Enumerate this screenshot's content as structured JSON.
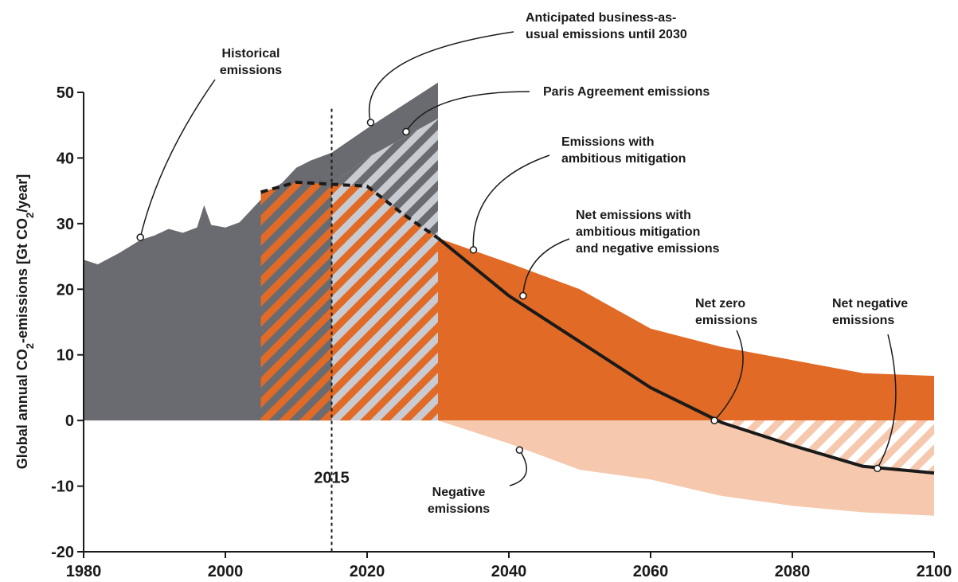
{
  "chart_data": {
    "type": "area",
    "ylabel": "Global annual CO₂-emissions [Gt CO₂/year]",
    "ylabel_parts": [
      "Global annual CO",
      "2",
      "-emissions [Gt CO",
      "2",
      "/year]"
    ],
    "xlim": [
      1980,
      2100
    ],
    "ylim": [
      -20,
      50
    ],
    "x_ticks": [
      1980,
      2000,
      2020,
      2040,
      2060,
      2080,
      2100
    ],
    "y_ticks": [
      -20,
      -10,
      0,
      10,
      20,
      30,
      40,
      50
    ],
    "grid": false,
    "colors": {
      "historical": "#6a6b70",
      "ambitious": "#e06a26",
      "negative": "#f6c8ad",
      "hatch_light": "#c9cbd2",
      "ink": "#1a1a1a"
    },
    "series": [
      {
        "key": "historical",
        "x": [
          1980,
          1982,
          1985,
          1988,
          1990,
          1992,
          1994,
          1996,
          1997,
          1998,
          2000,
          2002,
          2004,
          2006,
          2008,
          2010,
          2012,
          2014,
          2015
        ],
        "values": [
          24.5,
          23.8,
          25.5,
          27.5,
          28.2,
          29.2,
          28.6,
          29.4,
          32.8,
          29.8,
          29.4,
          30.2,
          32.5,
          34.8,
          36.2,
          38.5,
          39.6,
          40.4,
          40.8
        ]
      },
      {
        "key": "business_as_usual",
        "x": [
          2015,
          2020,
          2025,
          2030
        ],
        "values": [
          40.8,
          44.5,
          48,
          51.5
        ]
      },
      {
        "key": "paris_agreement",
        "x": [
          2005,
          2010,
          2015,
          2020,
          2025,
          2030
        ],
        "values": [
          34.8,
          36.5,
          36,
          40,
          43,
          46
        ]
      },
      {
        "key": "ambitious_mitigation",
        "x": [
          2005,
          2010,
          2015,
          2020,
          2025,
          2030,
          2040,
          2050,
          2060,
          2070,
          2080,
          2090,
          2100
        ],
        "values": [
          34.8,
          36.3,
          36,
          35.7,
          31.5,
          27.8,
          24,
          20,
          14,
          11.2,
          9.2,
          7.2,
          6.8
        ]
      },
      {
        "key": "negative_emissions",
        "x": [
          2030,
          2040,
          2050,
          2060,
          2070,
          2080,
          2090,
          2100
        ],
        "values": [
          0,
          -3.5,
          -7.5,
          -9,
          -11.5,
          -13,
          -14,
          -14.5
        ]
      },
      {
        "key": "net_emissions",
        "x": [
          2030,
          2040,
          2050,
          2060,
          2070,
          2080,
          2090,
          2100
        ],
        "values": [
          27.8,
          19,
          12,
          5,
          -0.3,
          -3.8,
          -7,
          -8
        ]
      }
    ],
    "marker_year": 2015,
    "marker_label": "2015",
    "annotations": [
      {
        "key": "historical",
        "lines": [
          "Historical",
          "emissions"
        ],
        "point": [
          1988,
          27.9
        ]
      },
      {
        "key": "bau",
        "lines": [
          "Anticipated business-as-",
          "usual emissions until 2030"
        ],
        "point": [
          2020.5,
          45.4
        ]
      },
      {
        "key": "paris",
        "lines": [
          "Paris Agreement emissions"
        ],
        "point": [
          2025.5,
          44
        ]
      },
      {
        "key": "ambitious",
        "lines": [
          "Emissions with",
          "ambitious mitigation"
        ],
        "point": [
          2035,
          26
        ]
      },
      {
        "key": "net_ambitious",
        "lines": [
          "Net emissions with",
          "ambitious mitigation",
          "and negative emissions"
        ],
        "point": [
          2042,
          19
        ]
      },
      {
        "key": "net_zero",
        "lines": [
          "Net zero",
          "emissions"
        ],
        "point": [
          2069,
          0
        ]
      },
      {
        "key": "net_negative",
        "lines": [
          "Net negative",
          "emissions"
        ],
        "point": [
          2092,
          -7.3
        ]
      },
      {
        "key": "negative",
        "lines": [
          "Negative",
          "emissions"
        ],
        "point": [
          2041.5,
          -4.5
        ]
      }
    ]
  }
}
